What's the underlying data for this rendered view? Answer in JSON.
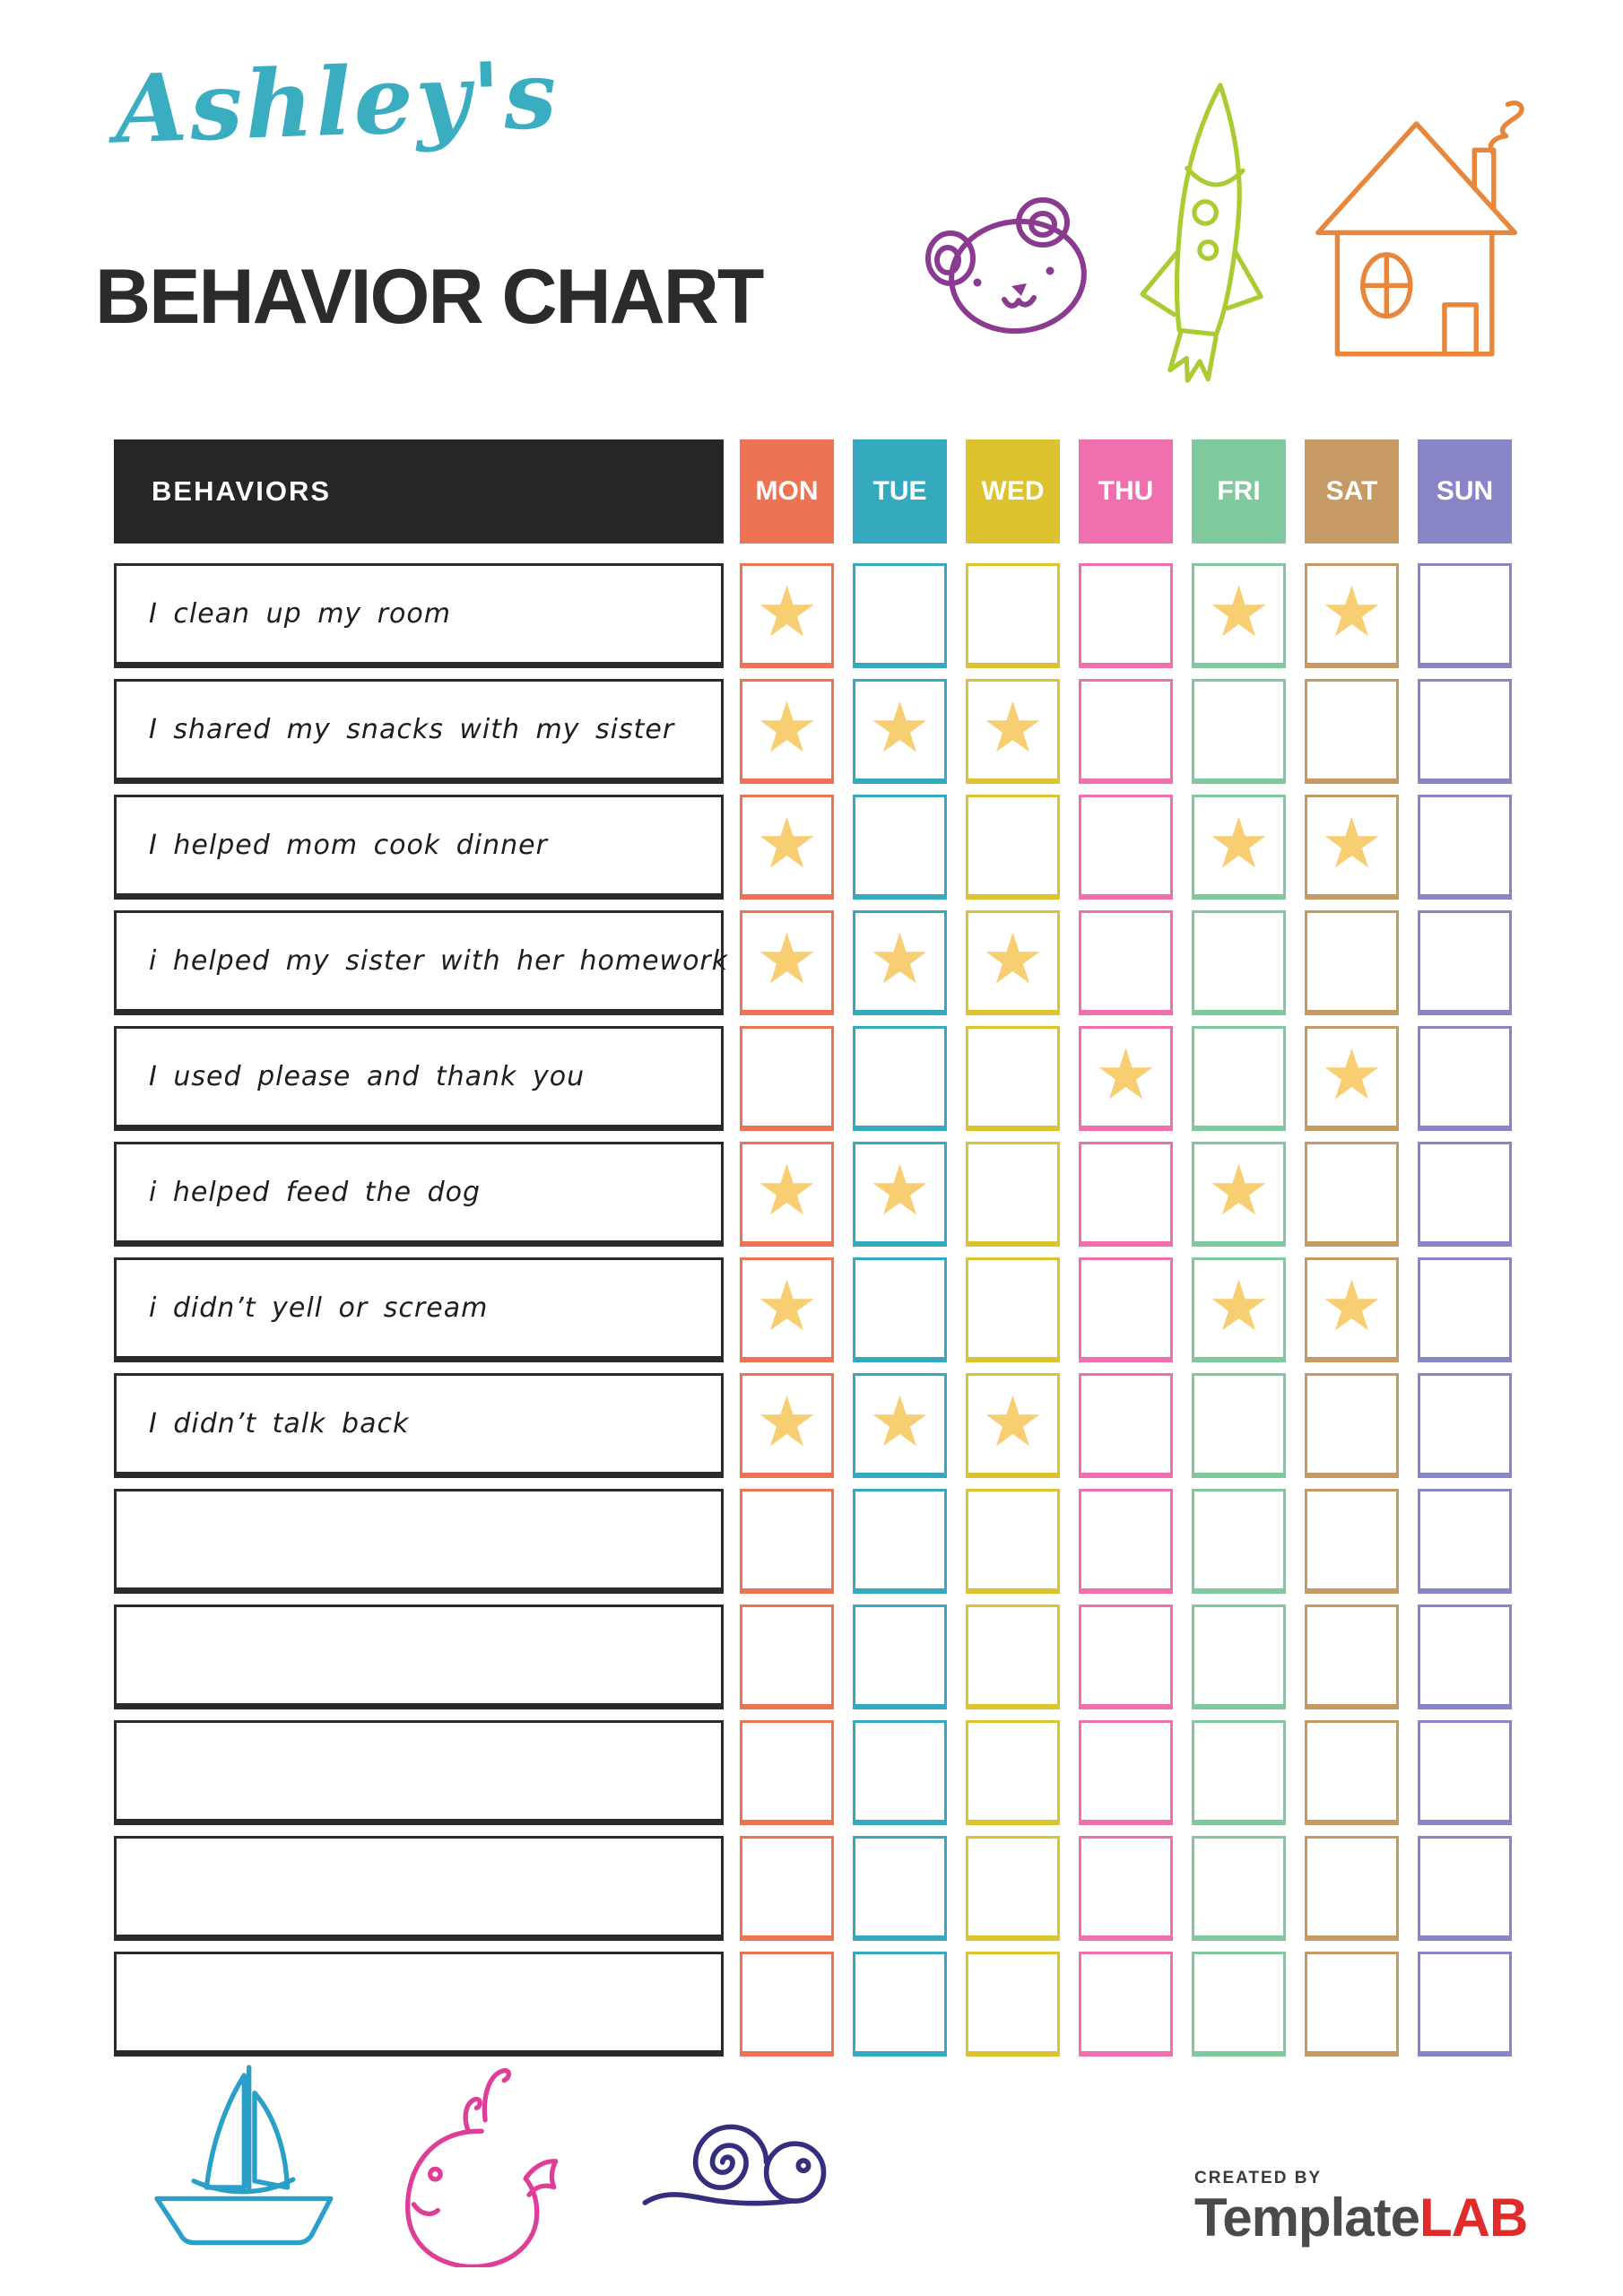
{
  "page": {
    "owner_name": "Ashley's",
    "title": "BEHAVIOR CHART"
  },
  "table": {
    "behaviors_header": "BEHAVIORS",
    "days": [
      {
        "label": "MON",
        "color": "#ED7355"
      },
      {
        "label": "TUE",
        "color": "#35A9BD"
      },
      {
        "label": "WED",
        "color": "#DCC32F"
      },
      {
        "label": "THU",
        "color": "#F06FAF"
      },
      {
        "label": "FRI",
        "color": "#80C99E"
      },
      {
        "label": "SAT",
        "color": "#C69A64"
      },
      {
        "label": "SUN",
        "color": "#8785C5"
      }
    ],
    "rows": [
      {
        "behavior": "I clean up my room",
        "stars": [
          1,
          0,
          0,
          0,
          1,
          1,
          0
        ]
      },
      {
        "behavior": "I shared my snacks with my sister",
        "stars": [
          1,
          1,
          1,
          0,
          0,
          0,
          0
        ]
      },
      {
        "behavior": "I helped mom cook dinner",
        "stars": [
          1,
          0,
          0,
          0,
          1,
          1,
          0
        ]
      },
      {
        "behavior": "i helped my sister with her homework",
        "stars": [
          1,
          1,
          1,
          0,
          0,
          0,
          0
        ]
      },
      {
        "behavior": "I used please and thank you",
        "stars": [
          0,
          0,
          0,
          1,
          0,
          1,
          0
        ]
      },
      {
        "behavior": "i helped feed the dog",
        "stars": [
          1,
          1,
          0,
          0,
          1,
          0,
          0
        ]
      },
      {
        "behavior": "i didn’t yell or scream",
        "stars": [
          1,
          0,
          0,
          0,
          1,
          1,
          0
        ]
      },
      {
        "behavior": "I didn’t talk back",
        "stars": [
          1,
          1,
          1,
          0,
          0,
          0,
          0
        ]
      },
      {
        "behavior": "",
        "stars": [
          0,
          0,
          0,
          0,
          0,
          0,
          0
        ]
      },
      {
        "behavior": "",
        "stars": [
          0,
          0,
          0,
          0,
          0,
          0,
          0
        ]
      },
      {
        "behavior": "",
        "stars": [
          0,
          0,
          0,
          0,
          0,
          0,
          0
        ]
      },
      {
        "behavior": "",
        "stars": [
          0,
          0,
          0,
          0,
          0,
          0,
          0
        ]
      },
      {
        "behavior": "",
        "stars": [
          0,
          0,
          0,
          0,
          0,
          0,
          0
        ]
      }
    ]
  },
  "icons": {
    "star_glyph": "★",
    "doodles": [
      "bear-doodle",
      "rocket-doodle",
      "house-doodle",
      "sailboat-doodle",
      "whale-doodle",
      "snail-doodle"
    ]
  },
  "colors": {
    "title_script": "#3AAEC0",
    "title_dark": "#2B2B2B",
    "header_black": "#262626",
    "star": "#F8CE73",
    "bear": "#8A3B8F",
    "rocket": "#ABCB33",
    "house": "#E8863B",
    "sailboat": "#2AA0C8",
    "whale": "#DE3D98",
    "snail": "#332F7E",
    "brand_gray": "#4A4A4A",
    "brand_red": "#E02B2B"
  },
  "footer": {
    "created_by": "CREATED BY",
    "brand_template": "Template",
    "brand_lab": "LAB"
  }
}
